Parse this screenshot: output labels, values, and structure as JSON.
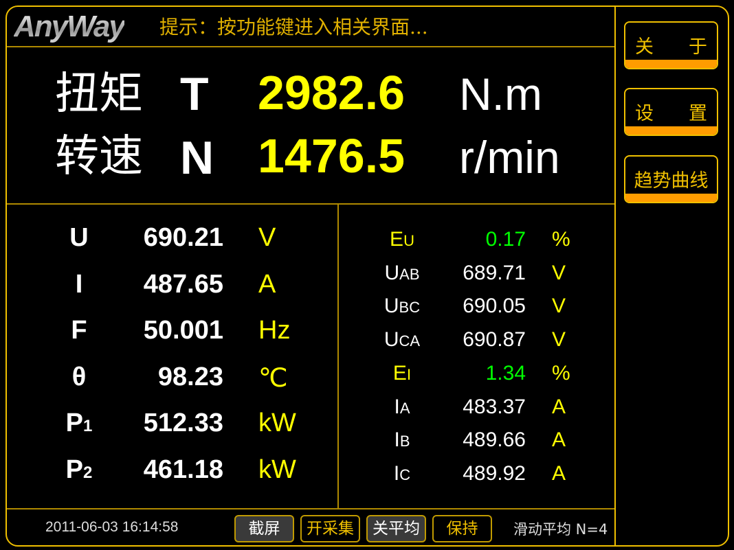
{
  "header": {
    "logo": "AnyWay",
    "hint": "提示：按功能键进入相关界面..."
  },
  "main": {
    "torque": {
      "label": "扭矩",
      "symbol": "T",
      "value": "2982.6",
      "unit": "N.m"
    },
    "speed": {
      "label": "转速",
      "symbol": "N",
      "value": "1476.5",
      "unit": "r/min"
    }
  },
  "left": [
    {
      "symbol": "U",
      "sub": "",
      "value": "690.21",
      "unit": "V"
    },
    {
      "symbol": "I",
      "sub": "",
      "value": "487.65",
      "unit": "A"
    },
    {
      "symbol": "F",
      "sub": "",
      "value": "50.001",
      "unit": "Hz"
    },
    {
      "symbol": "θ",
      "sub": "",
      "value": "98.23",
      "unit": "℃"
    },
    {
      "symbol": "P",
      "sub": "1",
      "value": "512.33",
      "unit": "kW"
    },
    {
      "symbol": "P",
      "sub": "2",
      "value": "461.18",
      "unit": "kW"
    }
  ],
  "right": [
    {
      "symbol": "E",
      "sub": "U",
      "value": "0.17",
      "unit": "%",
      "highlight": true
    },
    {
      "symbol": "U",
      "sub": "AB",
      "value": "689.71",
      "unit": "V",
      "highlight": false
    },
    {
      "symbol": "U",
      "sub": "BC",
      "value": "690.05",
      "unit": "V",
      "highlight": false
    },
    {
      "symbol": "U",
      "sub": "CA",
      "value": "690.87",
      "unit": "V",
      "highlight": false
    },
    {
      "symbol": "E",
      "sub": "I",
      "value": "1.34",
      "unit": "%",
      "highlight": true
    },
    {
      "symbol": "I",
      "sub": "A",
      "value": "483.37",
      "unit": "A",
      "highlight": false
    },
    {
      "symbol": "I",
      "sub": "B",
      "value": "489.66",
      "unit": "A",
      "highlight": false
    },
    {
      "symbol": "I",
      "sub": "C",
      "value": "489.92",
      "unit": "A",
      "highlight": false
    }
  ],
  "side": {
    "about": [
      "关",
      "于"
    ],
    "settings": [
      "设",
      "置"
    ],
    "trend": "趋势曲线"
  },
  "footer": {
    "timestamp": "2011-06-03 16:14:58",
    "buttons": [
      "截屏",
      "开采集",
      "关平均",
      "保持"
    ],
    "average": "滑动平均 N=4"
  },
  "colors": {
    "frame": "#f0c000",
    "value": "#ffff00",
    "highlight_label": "#ffff00",
    "highlight_value": "#00ff00",
    "button_bar": "#ff9c00"
  }
}
